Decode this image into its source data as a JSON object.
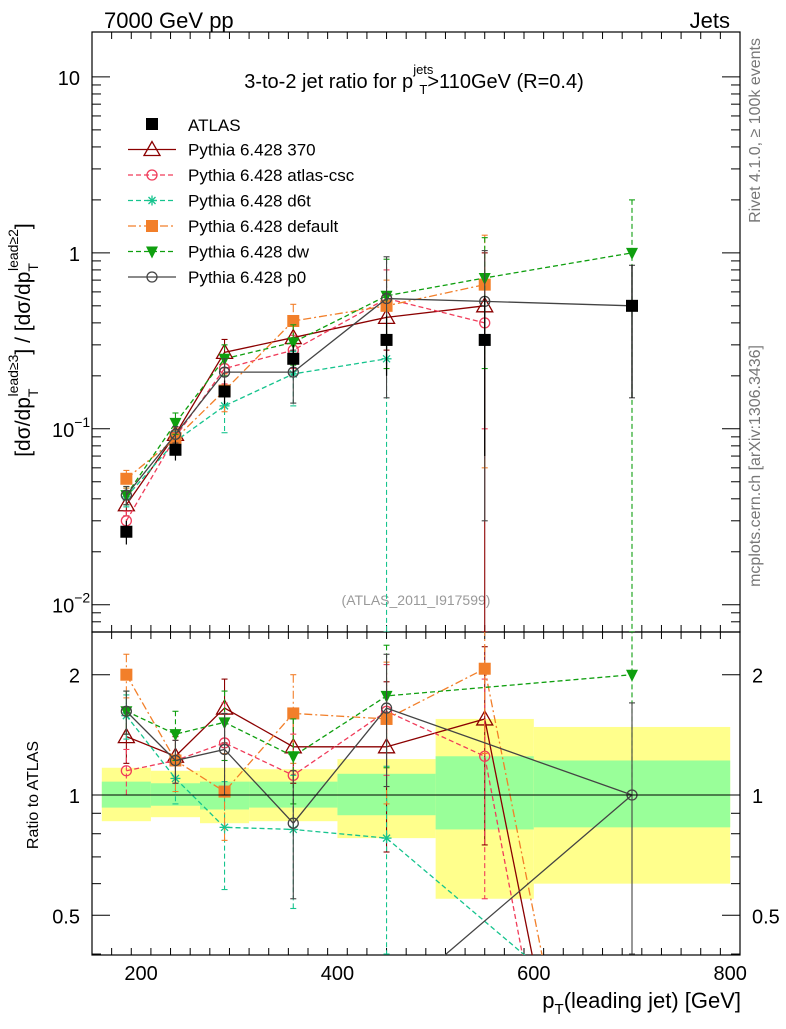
{
  "header": {
    "left": "7000 GeV pp",
    "right": "Jets"
  },
  "side_text": {
    "rivet": "Rivet 4.1.0, ≥ 100k events",
    "mcplots": "mcplots.cern.ch [arXiv:1306.3436]"
  },
  "colors": {
    "data": "#000000",
    "mc370": "#8b0000",
    "atlascsc": "#f03c5a",
    "d6t": "#16c48e",
    "default": "#f27f2a",
    "dw": "#0f9f0f",
    "p0": "#444444",
    "band_outer": "#ffff8c",
    "band_inner": "#99ff99"
  },
  "chart_data": {
    "type": "line",
    "title": "3-to-2 jet ratio for p_T^jets>110GeV (R=0.4)",
    "title_parts": {
      "a": "3-to-2 jet ratio for p",
      "sub": "T",
      "sup": "jets",
      "b": ">110GeV (R=0.4)"
    },
    "watermark": "(ATLAS_2011_I917599)",
    "xlabel": "p_T(leading jet) [GeV]",
    "xlabel_parts": {
      "a": "p",
      "sub": "T",
      "b": "(leading jet) [GeV]"
    },
    "ylabel": "[dσ/dp_T^lead≥3] / [dσ/dp_T^lead≥2]",
    "ratio_ylabel": "Ratio to ATLAS",
    "xlim": [
      150,
      810
    ],
    "ylim": [
      0.007,
      18
    ],
    "ratio_ylim": [
      0.4,
      2.4
    ],
    "yscale": "log",
    "x_ticks": [
      200,
      400,
      600,
      800
    ],
    "x_tick_labels": [
      "200",
      "400",
      "600",
      "800"
    ],
    "y_ticks": [
      0.01,
      0.1,
      1,
      10
    ],
    "y_tick_labels": [
      {
        "base": "10",
        "exp": "−2"
      },
      {
        "base": "10",
        "exp": "−1"
      },
      {
        "base": "1",
        "exp": ""
      },
      {
        "base": "10",
        "exp": ""
      }
    ],
    "ratio_ticks": [
      0.5,
      1,
      2
    ],
    "ratio_tick_labels": [
      "0.5",
      "1",
      "2"
    ],
    "x": [
      185,
      235,
      285,
      355,
      450,
      550,
      700
    ],
    "bin_edges": [
      160,
      210,
      260,
      310,
      400,
      500,
      600,
      800
    ],
    "data": {
      "name": "ATLAS",
      "values": [
        0.026,
        0.076,
        0.163,
        0.25,
        0.32,
        0.32,
        0.5
      ],
      "errors": [
        0.004,
        0.01,
        0.025,
        0.05,
        0.12,
        0.25,
        0.35
      ]
    },
    "ratio_bands": [
      {
        "xlo": 160,
        "xhi": 210,
        "outer": [
          0.86,
          1.17
        ],
        "inner": [
          0.93,
          1.08
        ]
      },
      {
        "xlo": 210,
        "xhi": 260,
        "outer": [
          0.88,
          1.15
        ],
        "inner": [
          0.94,
          1.07
        ]
      },
      {
        "xlo": 260,
        "xhi": 310,
        "outer": [
          0.85,
          1.17
        ],
        "inner": [
          0.92,
          1.08
        ]
      },
      {
        "xlo": 310,
        "xhi": 400,
        "outer": [
          0.86,
          1.16
        ],
        "inner": [
          0.93,
          1.08
        ]
      },
      {
        "xlo": 400,
        "xhi": 500,
        "outer": [
          0.78,
          1.23
        ],
        "inner": [
          0.89,
          1.13
        ]
      },
      {
        "xlo": 500,
        "xhi": 600,
        "outer": [
          0.55,
          1.55
        ],
        "inner": [
          0.82,
          1.25
        ]
      },
      {
        "xlo": 600,
        "xhi": 800,
        "outer": [
          0.6,
          1.48
        ],
        "inner": [
          0.83,
          1.22
        ]
      }
    ],
    "series": [
      {
        "key": "mc370",
        "name": "Pythia 6.428 370",
        "marker": "triangle-open",
        "dash": "",
        "values": [
          0.037,
          0.093,
          0.272,
          0.33,
          0.43,
          0.5,
          null
        ],
        "errors": [
          0.005,
          0.01,
          0.05,
          0.07,
          0.15,
          0.5,
          null
        ],
        "ratio": [
          1.4,
          1.25,
          1.65,
          1.32,
          1.32,
          1.55,
          null
        ],
        "ratio_errors": [
          0.2,
          0.15,
          0.3,
          0.25,
          0.6,
          0.8,
          null
        ],
        "ratio_offscale": {
          "x": 600,
          "y": 0.38
        }
      },
      {
        "key": "atlascsc",
        "name": "Pythia 6.428 atlas-csc",
        "marker": "circle-open",
        "dash": "5,3",
        "values": [
          0.03,
          0.09,
          0.22,
          0.28,
          0.55,
          0.4,
          null
        ],
        "errors": [
          0.004,
          0.012,
          0.04,
          0.06,
          0.25,
          0.3,
          null
        ],
        "ratio": [
          1.15,
          1.22,
          1.35,
          1.12,
          1.62,
          1.25,
          null
        ],
        "ratio_errors": [
          0.15,
          0.15,
          0.35,
          0.3,
          0.5,
          0.7,
          null
        ],
        "ratio_offscale": {
          "x": 590,
          "y": 0.38
        }
      },
      {
        "key": "d6t",
        "name": "Pythia 6.428 d6t",
        "marker": "star",
        "dash": "5,3",
        "values": [
          0.041,
          0.085,
          0.135,
          0.205,
          0.25,
          null,
          null
        ],
        "errors": [
          0.005,
          0.012,
          0.04,
          0.07,
          0.25,
          null,
          null
        ],
        "ratio": [
          1.58,
          1.1,
          0.83,
          0.82,
          0.78,
          null,
          null
        ],
        "ratio_errors": [
          0.2,
          0.15,
          0.25,
          0.3,
          0.4,
          null,
          null
        ],
        "ratio_offscale": {
          "x": 600,
          "y": 0.38
        }
      },
      {
        "key": "default",
        "name": "Pythia 6.428 default",
        "marker": "square",
        "dash": "8,3,2,3",
        "values": [
          0.052,
          0.088,
          0.165,
          0.41,
          0.5,
          0.66,
          null
        ],
        "errors": [
          0.006,
          0.01,
          0.04,
          0.1,
          0.2,
          0.6,
          null
        ],
        "ratio": [
          2.0,
          1.22,
          1.02,
          1.6,
          1.55,
          2.07,
          null
        ],
        "ratio_errors": [
          0.25,
          0.2,
          0.25,
          0.4,
          0.6,
          0.8,
          null
        ],
        "ratio_offscale": {
          "x": 610,
          "y": 0.38
        }
      },
      {
        "key": "dw",
        "name": "Pythia 6.428 dw",
        "marker": "triangle-down",
        "dash": "5,3",
        "values": [
          0.042,
          0.108,
          0.25,
          0.31,
          0.57,
          0.72,
          1.0
        ],
        "errors": [
          0.005,
          0.015,
          0.05,
          0.08,
          0.35,
          0.5,
          1.0
        ],
        "ratio": [
          1.62,
          1.42,
          1.52,
          1.25,
          1.77,
          null,
          2.0
        ],
        "ratio_errors": [
          0.2,
          0.2,
          0.3,
          0.3,
          0.6,
          null,
          1.0
        ]
      },
      {
        "key": "p0",
        "name": "Pythia 6.428 p0",
        "marker": "circle-open",
        "dash": "",
        "values": [
          0.042,
          0.093,
          0.21,
          0.21,
          0.55,
          0.53,
          0.5
        ],
        "errors": [
          0.005,
          0.01,
          0.04,
          0.07,
          0.4,
          0.5,
          0.35
        ],
        "ratio": [
          1.62,
          1.22,
          1.3,
          0.85,
          1.65,
          null,
          1.0
        ],
        "ratio_errors": [
          0.2,
          0.15,
          0.3,
          0.3,
          0.6,
          null,
          0.7
        ],
        "ratio_offscale": {
          "x": 500,
          "y": 0.38
        }
      }
    ]
  }
}
